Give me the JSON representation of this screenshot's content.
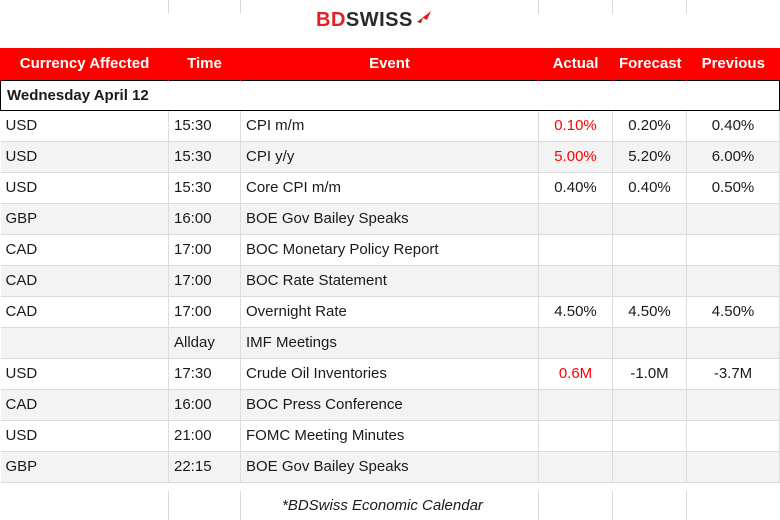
{
  "brand": {
    "part1": "BD",
    "part2": "SWISS",
    "accent": "#e31e24"
  },
  "header": {
    "currency": "Currency Affected",
    "time": "Time",
    "event": "Event",
    "actual": "Actual",
    "forecast": "Forecast",
    "previous": "Previous"
  },
  "day": "Wednesday April 12",
  "rows": [
    {
      "currency": "USD",
      "time": "15:30",
      "event": "CPI m/m",
      "actual": "0.10%",
      "forecast": "0.20%",
      "previous": "0.40%"
    },
    {
      "currency": "USD",
      "time": "15:30",
      "event": "CPI y/y",
      "actual": "5.00%",
      "forecast": "5.20%",
      "previous": "6.00%"
    },
    {
      "currency": "USD",
      "time": "15:30",
      "event": "Core CPI m/m",
      "actual": "0.40%",
      "forecast": "0.40%",
      "previous": "0.50%"
    },
    {
      "currency": "GBP",
      "time": "16:00",
      "event": "BOE Gov Bailey Speaks",
      "actual": "",
      "forecast": "",
      "previous": ""
    },
    {
      "currency": "CAD",
      "time": "17:00",
      "event": "BOC Monetary Policy Report",
      "actual": "",
      "forecast": "",
      "previous": ""
    },
    {
      "currency": "CAD",
      "time": "17:00",
      "event": "BOC Rate Statement",
      "actual": "",
      "forecast": "",
      "previous": ""
    },
    {
      "currency": "CAD",
      "time": "17:00",
      "event": "Overnight Rate",
      "actual": "4.50%",
      "forecast": "4.50%",
      "previous": "4.50%"
    },
    {
      "currency": "",
      "time": "Allday",
      "event": "IMF Meetings",
      "actual": "",
      "forecast": "",
      "previous": ""
    },
    {
      "currency": "USD",
      "time": "17:30",
      "event": "Crude Oil Inventories",
      "actual": "0.6M",
      "forecast": "-1.0M",
      "previous": "-3.7M"
    },
    {
      "currency": "CAD",
      "time": "16:00",
      "event": "BOC Press Conference",
      "actual": "",
      "forecast": "",
      "previous": ""
    },
    {
      "currency": "USD",
      "time": "21:00",
      "event": "FOMC Meeting Minutes",
      "actual": "",
      "forecast": "",
      "previous": ""
    },
    {
      "currency": "GBP",
      "time": "22:15",
      "event": "BOE Gov Bailey Speaks",
      "actual": "",
      "forecast": "",
      "previous": ""
    }
  ],
  "red_actual_rows": [
    0,
    1,
    8
  ],
  "footer_note": "*BDSwiss Economic Calendar"
}
